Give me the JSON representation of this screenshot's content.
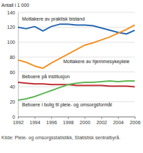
{
  "chart_data": {
    "type": "line",
    "y_label": "Antall i 1 000",
    "source": "Kilde: Pleie- og omsorgsstatistikk, Statistisk sentralbyrå.",
    "x": [
      1992,
      1993,
      1994,
      1995,
      1996,
      1997,
      1998,
      1999,
      2000,
      2001,
      2002,
      2003,
      2004,
      2005,
      2006
    ],
    "xlim": [
      1992,
      2006
    ],
    "xticks": [
      1992,
      1994,
      1996,
      1998,
      2000,
      2002,
      2004,
      2006
    ],
    "ylim": [
      0,
      140
    ],
    "yticks": [
      0,
      20,
      40,
      60,
      80,
      100,
      120,
      140
    ],
    "grid": true,
    "series": [
      {
        "name": "Mottakere av praktisk bistand",
        "color": "#2466b0",
        "values": [
          120,
          118,
          121,
          115,
          121,
          124,
          124,
          123,
          123,
          122,
          119,
          116,
          113,
          111,
          116
        ]
      },
      {
        "name": "Mottakere av hjemmesykepleie",
        "color": "#f39021",
        "values": [
          76,
          73,
          68,
          65,
          72,
          78,
          84,
          90,
          96,
          99,
          103,
          107,
          112,
          117,
          123
        ]
      },
      {
        "name": "Beboere på institusjon",
        "color": "#c0282d",
        "values": [
          46,
          45,
          44,
          44,
          43,
          43,
          43,
          42,
          42,
          42,
          42,
          41,
          41,
          41,
          40
        ]
      },
      {
        "name": "Beboere i bolig til pleie- og omsorgsformål",
        "color": "#5ab552",
        "values": [
          22,
          24,
          27,
          31,
          35,
          39,
          43,
          45,
          46,
          46,
          47,
          48,
          47,
          48,
          48
        ]
      }
    ]
  }
}
